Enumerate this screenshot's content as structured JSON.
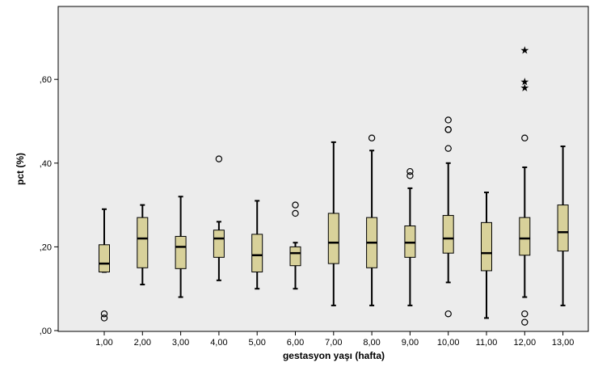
{
  "chart_data": {
    "type": "boxplot",
    "xlabel": "gestasyon yaşı (hafta)",
    "ylabel": "pct (%)",
    "ylim": [
      0,
      0.77
    ],
    "yticks": [
      {
        "value": 0.0,
        "label": ",00"
      },
      {
        "value": 0.2,
        "label": ",20"
      },
      {
        "value": 0.4,
        "label": ",40"
      },
      {
        "value": 0.6,
        "label": ",60"
      }
    ],
    "categories": [
      "1,00",
      "2,00",
      "3,00",
      "4,00",
      "5,00",
      "6,00",
      "7,00",
      "8,00",
      "9,00",
      "10,00",
      "11,00",
      "12,00",
      "13,00"
    ],
    "boxes": [
      {
        "q1": 0.14,
        "median": 0.16,
        "q3": 0.205,
        "lower_whisker": 0.14,
        "upper_whisker": 0.29,
        "outliers": [
          0.04,
          0.03
        ],
        "extremes": []
      },
      {
        "q1": 0.15,
        "median": 0.22,
        "q3": 0.27,
        "lower_whisker": 0.11,
        "upper_whisker": 0.3,
        "outliers": [],
        "extremes": []
      },
      {
        "q1": 0.148,
        "median": 0.2,
        "q3": 0.225,
        "lower_whisker": 0.08,
        "upper_whisker": 0.32,
        "outliers": [],
        "extremes": []
      },
      {
        "q1": 0.175,
        "median": 0.22,
        "q3": 0.24,
        "lower_whisker": 0.12,
        "upper_whisker": 0.26,
        "outliers": [
          0.41
        ],
        "extremes": []
      },
      {
        "q1": 0.14,
        "median": 0.18,
        "q3": 0.23,
        "lower_whisker": 0.1,
        "upper_whisker": 0.31,
        "outliers": [],
        "extremes": []
      },
      {
        "q1": 0.155,
        "median": 0.185,
        "q3": 0.2,
        "lower_whisker": 0.1,
        "upper_whisker": 0.21,
        "outliers": [
          0.28,
          0.3
        ],
        "extremes": []
      },
      {
        "q1": 0.16,
        "median": 0.21,
        "q3": 0.28,
        "lower_whisker": 0.06,
        "upper_whisker": 0.45,
        "outliers": [],
        "extremes": []
      },
      {
        "q1": 0.15,
        "median": 0.21,
        "q3": 0.27,
        "lower_whisker": 0.06,
        "upper_whisker": 0.43,
        "outliers": [
          0.46
        ],
        "extremes": []
      },
      {
        "q1": 0.175,
        "median": 0.21,
        "q3": 0.25,
        "lower_whisker": 0.06,
        "upper_whisker": 0.34,
        "outliers": [
          0.37,
          0.38
        ],
        "extremes": []
      },
      {
        "q1": 0.185,
        "median": 0.22,
        "q3": 0.275,
        "lower_whisker": 0.115,
        "upper_whisker": 0.4,
        "outliers": [
          0.435,
          0.48,
          0.48,
          0.503,
          0.04
        ],
        "extremes": []
      },
      {
        "q1": 0.143,
        "median": 0.185,
        "q3": 0.258,
        "lower_whisker": 0.03,
        "upper_whisker": 0.33,
        "outliers": [],
        "extremes": []
      },
      {
        "q1": 0.18,
        "median": 0.22,
        "q3": 0.27,
        "lower_whisker": 0.08,
        "upper_whisker": 0.39,
        "outliers": [
          0.46,
          0.04,
          0.02
        ],
        "extremes": [
          0.58,
          0.595,
          0.67
        ]
      },
      {
        "q1": 0.19,
        "median": 0.235,
        "q3": 0.3,
        "lower_whisker": 0.06,
        "upper_whisker": 0.44,
        "outliers": [],
        "extremes": []
      }
    ],
    "grid": false,
    "colors": {
      "plot_background": "#ececec",
      "box_fill": "#d8d19a",
      "box_stroke": "#000000"
    }
  }
}
